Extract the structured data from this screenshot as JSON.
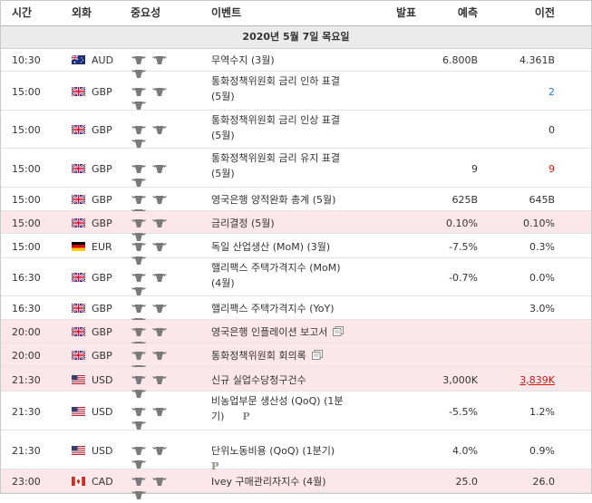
{
  "header": {
    "time": "시간",
    "currency": "외화",
    "importance": "중요성",
    "event": "이벤트",
    "actual": "발표",
    "forecast": "예측",
    "previous": "이전"
  },
  "date_label": "2020년 5월 7일 목요일",
  "colors": {
    "highlight_row": "#fbe7ea",
    "prev_up": "#2a7bd4",
    "prev_down": "#d01818"
  },
  "rows": [
    {
      "time": "10:30",
      "flag": "australia-flag",
      "currency": "AUD",
      "event_line1": "무역수지 (3월)",
      "event_line2": "",
      "forecast": "6.800B",
      "previous": "4.361B",
      "prev_color": "",
      "highlight": false,
      "icon": "",
      "pmark": ""
    },
    {
      "time": "15:00",
      "flag": "uk-flag",
      "currency": "GBP",
      "event_line1": "통화정책위원회 금리 인하 표결",
      "event_line2": "(5월)",
      "forecast": "",
      "previous": "2",
      "prev_color": "blue",
      "highlight": false,
      "icon": "",
      "pmark": ""
    },
    {
      "time": "15:00",
      "flag": "uk-flag",
      "currency": "GBP",
      "event_line1": "통화정책위원회 금리 인상 표결",
      "event_line2": "(5월)",
      "forecast": "",
      "previous": "0",
      "prev_color": "",
      "highlight": false,
      "icon": "",
      "pmark": ""
    },
    {
      "time": "15:00",
      "flag": "uk-flag",
      "currency": "GBP",
      "event_line1": "통화정책위원회 금리 유지 표결",
      "event_line2": "(5월)",
      "forecast": "9",
      "previous": "9",
      "prev_color": "red",
      "highlight": false,
      "icon": "",
      "pmark": ""
    },
    {
      "time": "15:00",
      "flag": "uk-flag",
      "currency": "GBP",
      "event_line1": "영국은행 양적완화 총계 (5월)",
      "event_line2": "",
      "forecast": "625B",
      "previous": "645B",
      "prev_color": "",
      "highlight": false,
      "icon": "",
      "pmark": ""
    },
    {
      "time": "15:00",
      "flag": "uk-flag",
      "currency": "GBP",
      "event_line1": "금리결정 (5월)",
      "event_line2": "",
      "forecast": "0.10%",
      "previous": "0.10%",
      "prev_color": "",
      "highlight": true,
      "icon": "",
      "pmark": ""
    },
    {
      "time": "15:00",
      "flag": "germany-flag",
      "currency": "EUR",
      "event_line1": "독일 산업생산 (MoM) (3월)",
      "event_line2": "",
      "forecast": "-7.5%",
      "previous": "0.3%",
      "prev_color": "",
      "highlight": false,
      "icon": "",
      "pmark": ""
    },
    {
      "time": "16:30",
      "flag": "uk-flag",
      "currency": "GBP",
      "event_line1": "핼리팩스 주택가격지수 (MoM)",
      "event_line2": "(4월)",
      "forecast": "-0.7%",
      "previous": "0.0%",
      "prev_color": "",
      "highlight": false,
      "icon": "",
      "pmark": ""
    },
    {
      "time": "16:30",
      "flag": "uk-flag",
      "currency": "GBP",
      "event_line1": "핼리팩스 주택가격지수 (YoY)",
      "event_line2": "",
      "forecast": "",
      "previous": "3.0%",
      "prev_color": "",
      "highlight": false,
      "icon": "",
      "pmark": ""
    },
    {
      "time": "20:00",
      "flag": "uk-flag",
      "currency": "GBP",
      "event_line1": "영국은행 인플레이션 보고서",
      "event_line2": "",
      "forecast": "",
      "previous": "",
      "prev_color": "",
      "highlight": true,
      "icon": "document",
      "pmark": ""
    },
    {
      "time": "20:00",
      "flag": "uk-flag",
      "currency": "GBP",
      "event_line1": "통화정책위원회 회의록",
      "event_line2": "",
      "forecast": "",
      "previous": "",
      "prev_color": "",
      "highlight": true,
      "icon": "document",
      "pmark": ""
    },
    {
      "time": "21:30",
      "flag": "usa-flag",
      "currency": "USD",
      "event_line1": "신규 실업수당청구건수",
      "event_line2": "",
      "forecast": "3,000K",
      "previous": "3,839K",
      "prev_color": "red-underline",
      "highlight": true,
      "icon": "",
      "pmark": ""
    },
    {
      "time": "21:30",
      "flag": "usa-flag",
      "currency": "USD",
      "event_line1": "비농업부문 생산성 (QoQ) (1분",
      "event_line2": "기)",
      "forecast": "-5.5%",
      "previous": "1.2%",
      "prev_color": "",
      "highlight": false,
      "icon": "",
      "pmark": "P"
    },
    {
      "time": "21:30",
      "flag": "usa-flag",
      "currency": "USD",
      "event_line1": "단위노동비용 (QoQ) (1분기)",
      "event_line2": "",
      "forecast": "4.0%",
      "previous": "0.9%",
      "prev_color": "",
      "highlight": false,
      "icon": "",
      "pmark": "P"
    },
    {
      "time": "23:00",
      "flag": "canada-flag",
      "currency": "CAD",
      "event_line1": "Ivey 구매관리자지수 (4월)",
      "event_line2": "",
      "forecast": "25.0",
      "previous": "26.0",
      "prev_color": "",
      "highlight": true,
      "icon": "",
      "pmark": ""
    }
  ]
}
